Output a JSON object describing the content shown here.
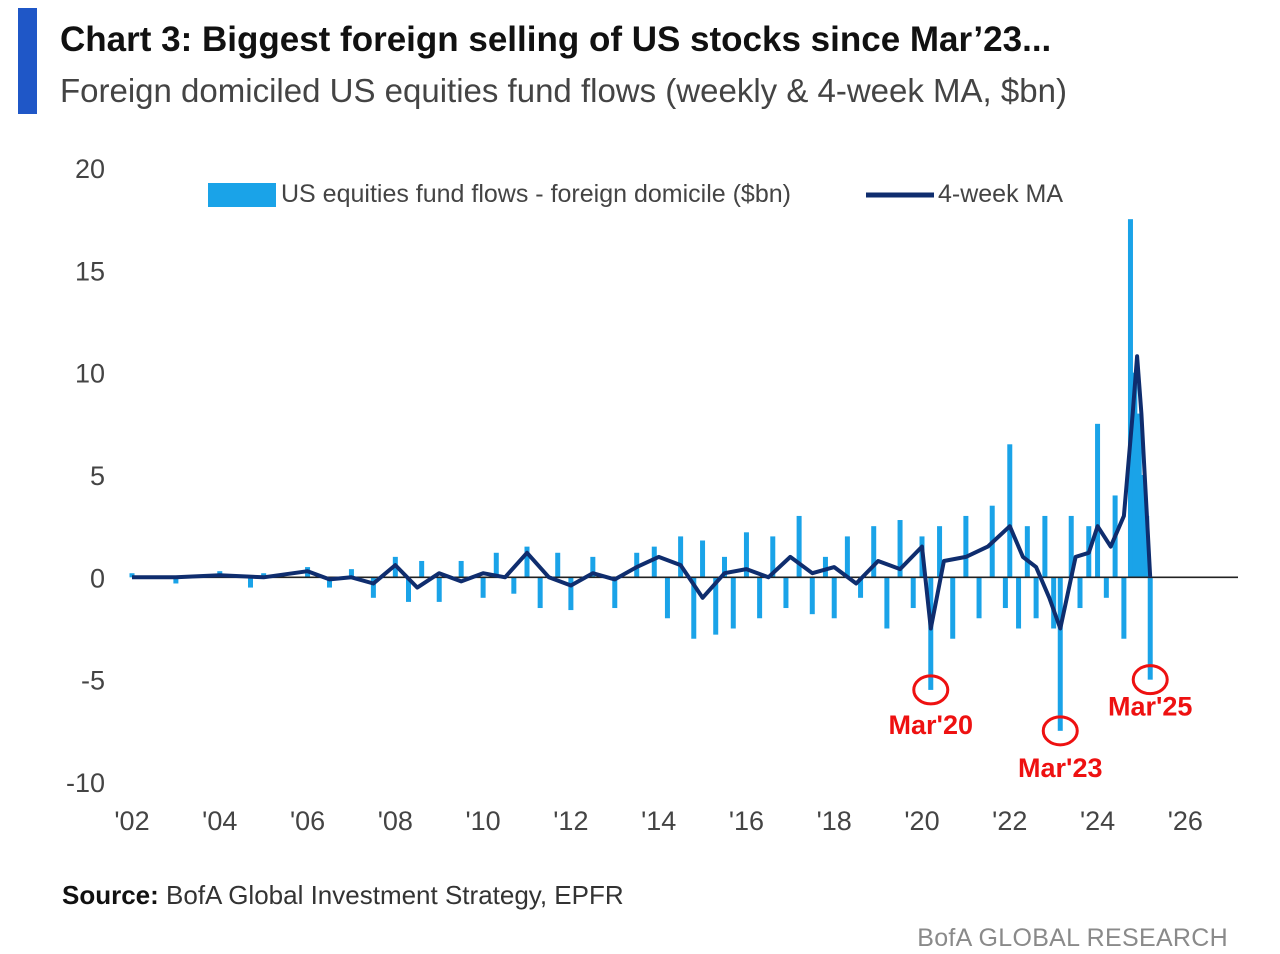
{
  "header": {
    "title": "Chart 3: Biggest foreign selling of US stocks since Mar’23...",
    "subtitle": "Foreign domiciled US equities fund flows (weekly & 4-week MA, $bn)"
  },
  "footer": {
    "source_label": "Source:",
    "source_text": " BofA Global Investment Strategy, EPFR",
    "brand": "BofA GLOBAL RESEARCH"
  },
  "colors": {
    "accent": "#1f57c7",
    "weekly": "#1aa3e8",
    "ma": "#0f2d6e",
    "annotation": "#ee1111"
  },
  "chart_data": {
    "type": "bar",
    "title": "Chart 3: Biggest foreign selling of US stocks since Mar’23...",
    "subtitle": "Foreign domiciled US equities fund flows (weekly & 4-week MA, $bn)",
    "xlabel": "",
    "ylabel": "",
    "xlim": [
      2002,
      2027.2
    ],
    "ylim": [
      -10,
      20
    ],
    "yticks": [
      20,
      15,
      10,
      5,
      0,
      -5,
      -10
    ],
    "xticks": [
      {
        "value": 2002,
        "label": "'02"
      },
      {
        "value": 2004,
        "label": "'04"
      },
      {
        "value": 2006,
        "label": "'06"
      },
      {
        "value": 2008,
        "label": "'08"
      },
      {
        "value": 2010,
        "label": "'10"
      },
      {
        "value": 2012,
        "label": "'12"
      },
      {
        "value": 2014,
        "label": "'14"
      },
      {
        "value": 2016,
        "label": "'16"
      },
      {
        "value": 2018,
        "label": "'18"
      },
      {
        "value": 2020,
        "label": "'20"
      },
      {
        "value": 2022,
        "label": "'22"
      },
      {
        "value": 2024,
        "label": "'24"
      },
      {
        "value": 2026,
        "label": "'26"
      }
    ],
    "grid": false,
    "legend_position": "top",
    "series": [
      {
        "name": "US equities fund flows - foreign domicile ($bn)",
        "kind": "bar",
        "x": [
          2002.0,
          2003.0,
          2004.0,
          2004.7,
          2005.0,
          2006.0,
          2006.5,
          2007.0,
          2007.5,
          2008.0,
          2008.3,
          2008.6,
          2009.0,
          2009.5,
          2010.0,
          2010.3,
          2010.7,
          2011.0,
          2011.3,
          2011.7,
          2012.0,
          2012.5,
          2013.0,
          2013.5,
          2013.9,
          2014.2,
          2014.5,
          2014.8,
          2015.0,
          2015.3,
          2015.5,
          2015.7,
          2016.0,
          2016.3,
          2016.6,
          2016.9,
          2017.2,
          2017.5,
          2017.8,
          2018.0,
          2018.3,
          2018.6,
          2018.9,
          2019.2,
          2019.5,
          2019.8,
          2020.0,
          2020.2,
          2020.4,
          2020.7,
          2021.0,
          2021.3,
          2021.6,
          2021.9,
          2022.0,
          2022.2,
          2022.4,
          2022.6,
          2022.8,
          2023.0,
          2023.15,
          2023.4,
          2023.6,
          2023.8,
          2024.0,
          2024.2,
          2024.4,
          2024.6,
          2024.75,
          2024.85,
          2024.95,
          2025.05,
          2025.12,
          2025.2
        ],
        "values": [
          0.2,
          -0.3,
          0.3,
          -0.5,
          0.2,
          0.5,
          -0.5,
          0.4,
          -1.0,
          1.0,
          -1.2,
          0.8,
          -1.2,
          0.8,
          -1.0,
          1.2,
          -0.8,
          1.5,
          -1.5,
          1.2,
          -1.6,
          1.0,
          -1.5,
          1.2,
          1.5,
          -2.0,
          2.0,
          -3.0,
          1.8,
          -2.8,
          1.0,
          -2.5,
          2.2,
          -2.0,
          2.0,
          -1.5,
          3.0,
          -1.8,
          1.0,
          -2.0,
          2.0,
          -1.0,
          2.5,
          -2.5,
          2.8,
          -1.5,
          2.0,
          -5.5,
          2.5,
          -3.0,
          3.0,
          -2.0,
          3.5,
          -1.5,
          6.5,
          -2.5,
          2.5,
          -2.0,
          3.0,
          -2.5,
          -7.5,
          3.0,
          -1.5,
          2.5,
          7.5,
          -1.0,
          4.0,
          -3.0,
          17.5,
          10.0,
          8.0,
          5.0,
          3.0,
          -5.0
        ]
      },
      {
        "name": "4-week MA",
        "kind": "line",
        "x": [
          2002.0,
          2003.0,
          2004.0,
          2005.0,
          2006.0,
          2006.5,
          2007.0,
          2007.5,
          2008.0,
          2008.5,
          2009.0,
          2009.5,
          2010.0,
          2010.5,
          2011.0,
          2011.5,
          2012.0,
          2012.5,
          2013.0,
          2013.5,
          2014.0,
          2014.5,
          2015.0,
          2015.5,
          2016.0,
          2016.5,
          2017.0,
          2017.5,
          2018.0,
          2018.5,
          2019.0,
          2019.5,
          2020.0,
          2020.2,
          2020.5,
          2021.0,
          2021.5,
          2022.0,
          2022.3,
          2022.6,
          2022.9,
          2023.15,
          2023.5,
          2023.8,
          2024.0,
          2024.3,
          2024.6,
          2024.8,
          2024.9,
          2025.0,
          2025.1,
          2025.2
        ],
        "values": [
          0.0,
          0.0,
          0.1,
          0.0,
          0.3,
          -0.1,
          0.0,
          -0.3,
          0.6,
          -0.5,
          0.2,
          -0.2,
          0.2,
          0.0,
          1.2,
          0.0,
          -0.4,
          0.2,
          -0.1,
          0.5,
          1.0,
          0.6,
          -1.0,
          0.2,
          0.4,
          0.0,
          1.0,
          0.2,
          0.5,
          -0.3,
          0.8,
          0.4,
          1.5,
          -2.5,
          0.8,
          1.0,
          1.5,
          2.5,
          1.0,
          0.5,
          -1.0,
          -2.5,
          1.0,
          1.2,
          2.5,
          1.5,
          3.0,
          8.0,
          10.8,
          8.0,
          4.0,
          0.0
        ]
      }
    ],
    "annotations": [
      {
        "label": "Mar'20",
        "x": 2020.2,
        "y": -5.5
      },
      {
        "label": "Mar'23",
        "x": 2023.15,
        "y": -7.5
      },
      {
        "label": "Mar'25",
        "x": 2025.2,
        "y": -5.0
      }
    ]
  }
}
